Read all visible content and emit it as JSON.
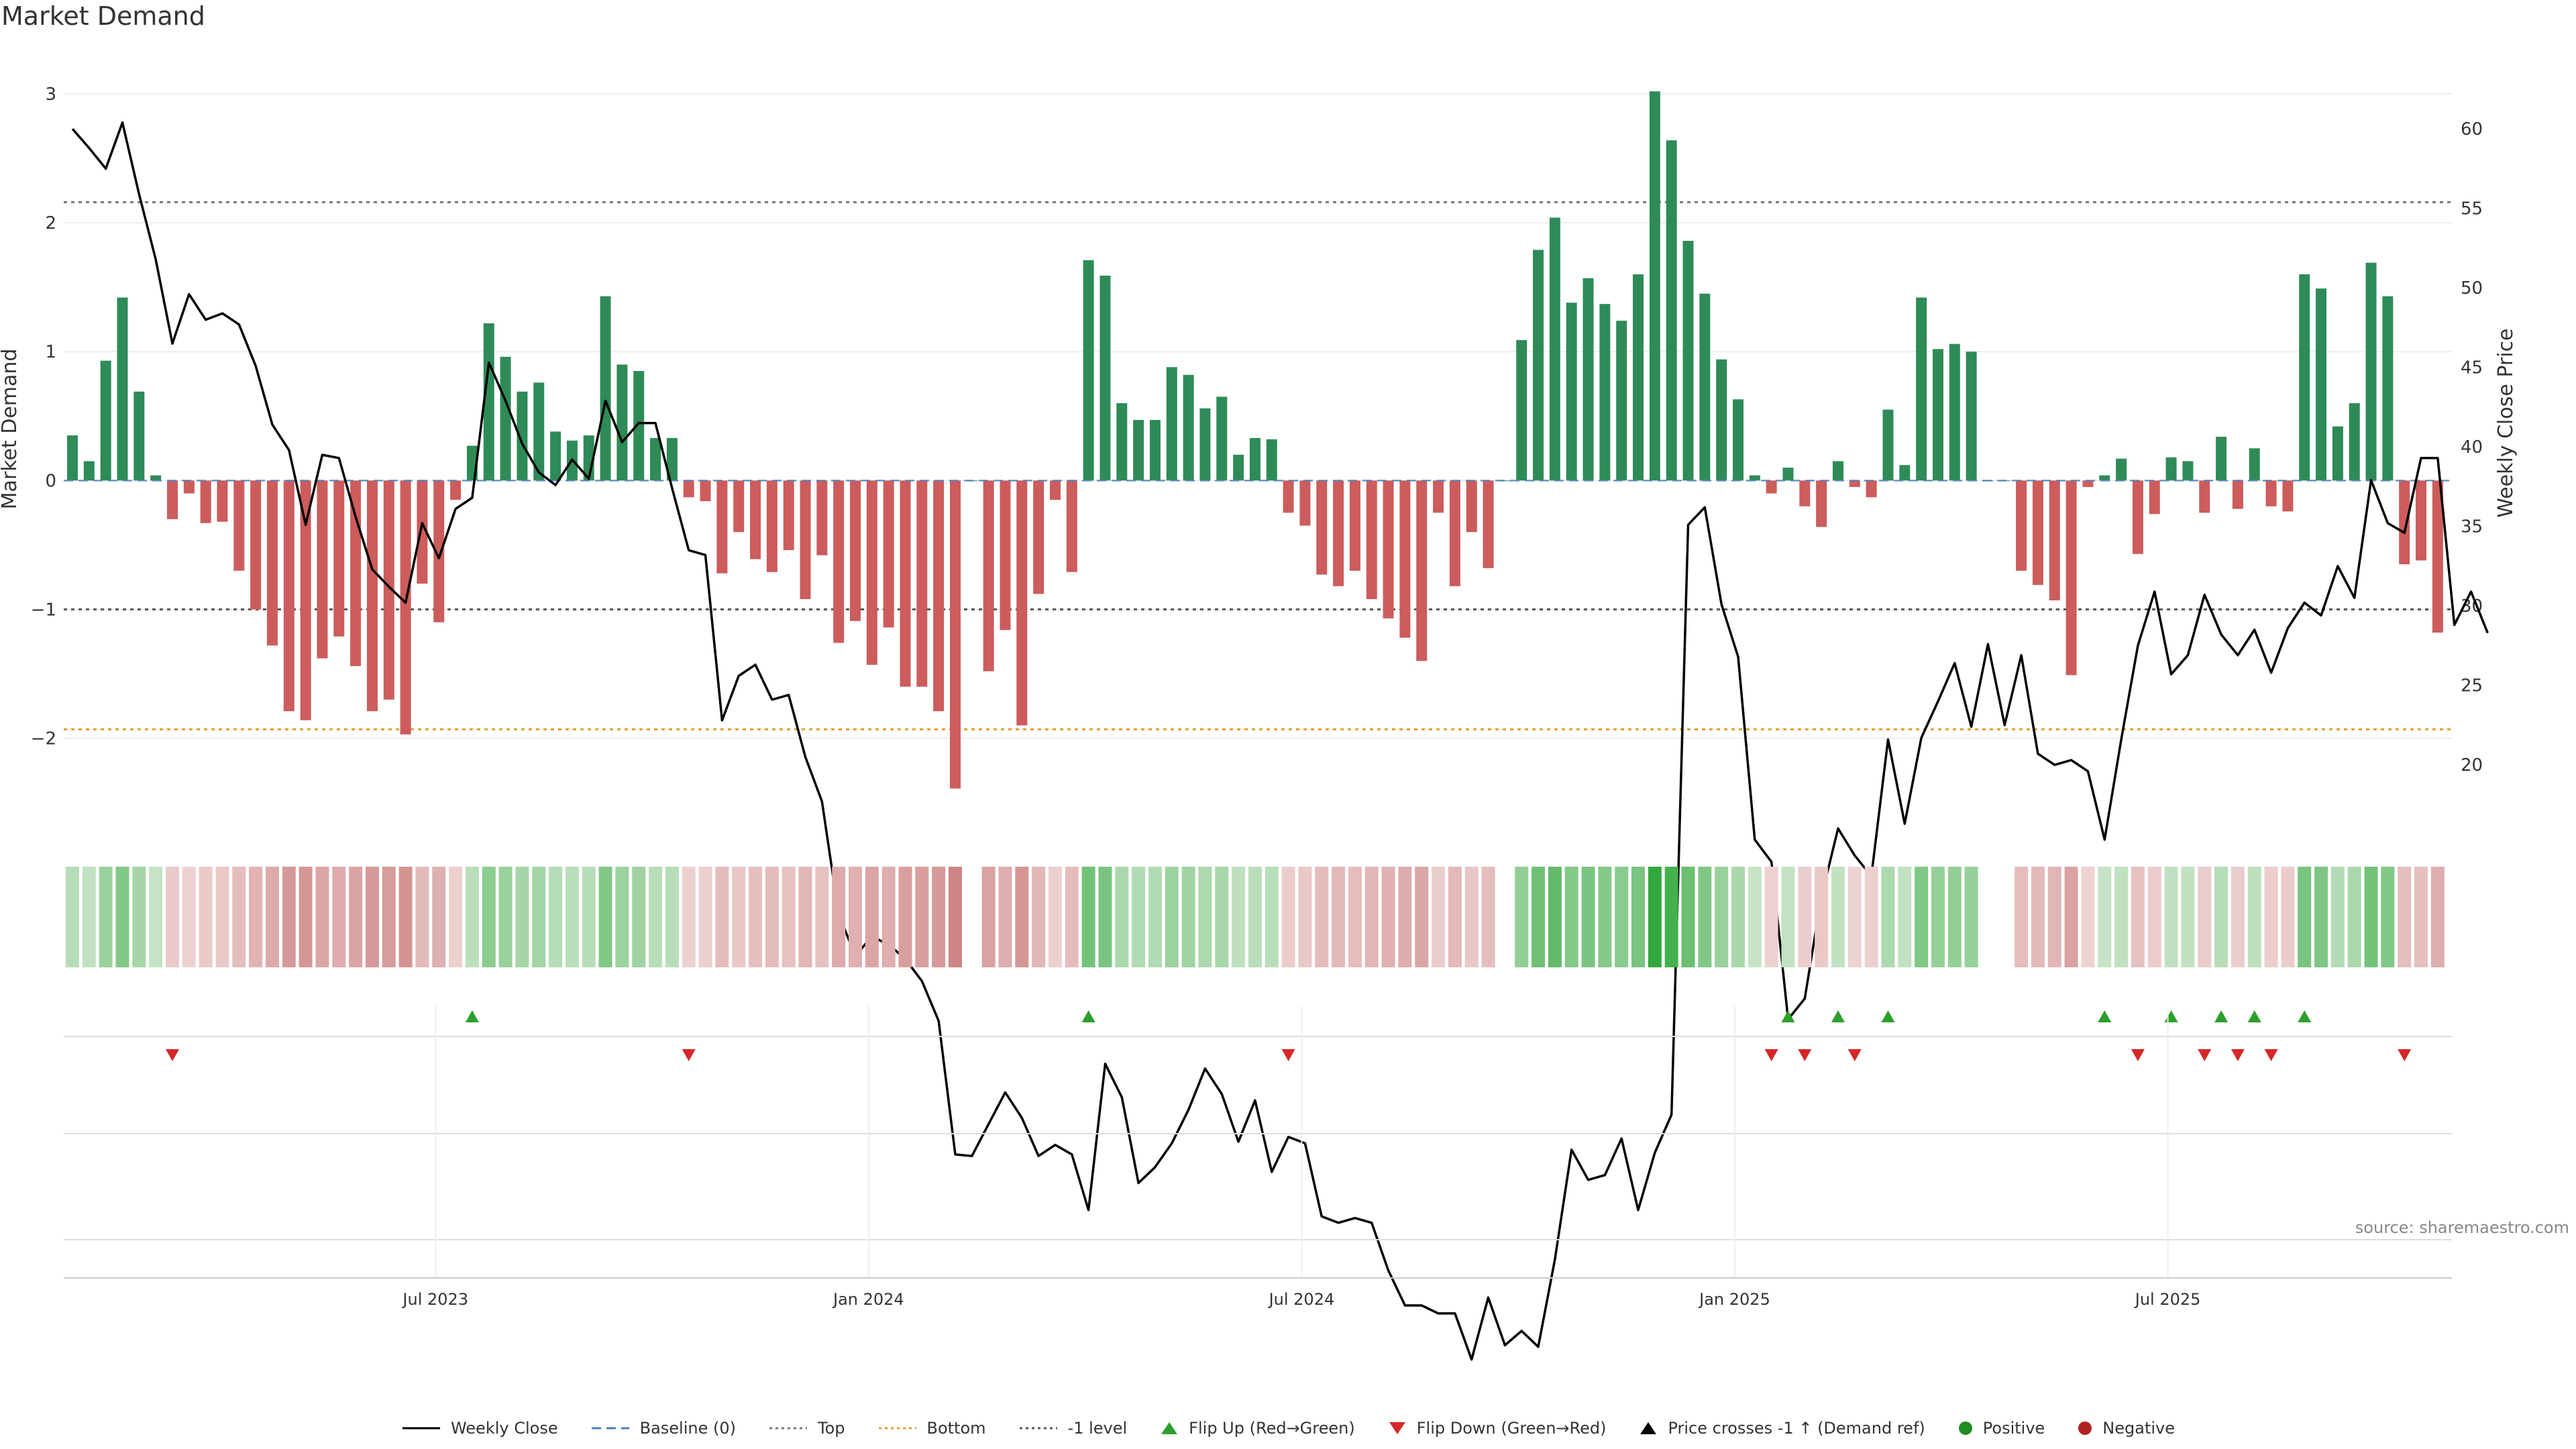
{
  "page": {
    "title": "Market Demand",
    "source": "source: sharemaestro.com"
  },
  "colors": {
    "positive": "#2e8b57",
    "negative": "#cd5c5c",
    "price_line": "#000000",
    "baseline": "#4a7ebb",
    "top": "#777777",
    "bottom": "#e69a2a",
    "flip_up": "#2ca02c",
    "flip_down": "#d62728",
    "cross": "#000000",
    "pos_dot": "#228b22",
    "neg_dot": "#b22222"
  },
  "legend": [
    {
      "key": "price",
      "label": "Weekly Close"
    },
    {
      "key": "baseline",
      "label": "Baseline (0)"
    },
    {
      "key": "top",
      "label": "Top"
    },
    {
      "key": "bottom",
      "label": "Bottom"
    },
    {
      "key": "minus1",
      "label": "-1 level"
    },
    {
      "key": "flipup",
      "label": "Flip Up (Red→Green)"
    },
    {
      "key": "flipdown",
      "label": "Flip Down (Green→Red)"
    },
    {
      "key": "cross",
      "label": "Price crosses -1 ↑ (Demand ref)"
    },
    {
      "key": "posdot",
      "label": "Positive"
    },
    {
      "key": "negdot",
      "label": "Negative"
    }
  ],
  "chart_data": {
    "type": "bar",
    "title": "Market Demand",
    "ylabel_left": "Market Demand",
    "ylabel_right": "Weekly Close Price",
    "left_ylim": [
      -2.7,
      3.0
    ],
    "left_ticks": [
      3,
      2,
      1,
      0,
      -1,
      -2
    ],
    "left_tick_labels": [
      "3",
      "2",
      "1",
      "0",
      "−1",
      "−2"
    ],
    "right_ylim": [
      16.0,
      62.2
    ],
    "right_ticks": [
      60,
      55,
      50,
      45,
      40,
      35,
      30,
      25,
      20
    ],
    "reference_lines": {
      "baseline": 0,
      "top": 2.16,
      "bottom": -1.93,
      "minus_one": -1
    },
    "x_tick_labels": [
      "Jul 2023",
      "Jan 2024",
      "Jul 2024",
      "Jan 2025",
      "Jul 2025"
    ],
    "x_tick_index": [
      22,
      48,
      74,
      100,
      126
    ],
    "demand": [
      0.35,
      0.15,
      0.93,
      1.42,
      0.69,
      0.04,
      -0.3,
      -0.1,
      -0.33,
      -0.32,
      -0.7,
      -1.0,
      -1.28,
      -1.79,
      -1.86,
      -1.38,
      -1.21,
      -1.44,
      -1.79,
      -1.7,
      -1.97,
      -0.8,
      -1.1,
      -0.15,
      0.27,
      1.22,
      0.96,
      0.69,
      0.76,
      0.38,
      0.31,
      0.35,
      1.43,
      0.9,
      0.85,
      0.33,
      0.33,
      -0.13,
      -0.16,
      -0.72,
      -0.4,
      -0.61,
      -0.71,
      -0.54,
      -0.92,
      -0.58,
      -1.26,
      -1.09,
      -1.43,
      -1.14,
      -1.6,
      -1.6,
      -1.79,
      -2.39,
      0.0,
      -1.48,
      -1.16,
      -1.9,
      -0.88,
      -0.15,
      -0.71,
      1.71,
      1.59,
      0.6,
      0.47,
      0.47,
      0.88,
      0.82,
      0.56,
      0.65,
      0.2,
      0.33,
      0.32,
      -0.25,
      -0.35,
      -0.73,
      -0.82,
      -0.7,
      -0.92,
      -1.07,
      -1.22,
      -1.4,
      -0.25,
      -0.82,
      -0.4,
      -0.68,
      0.0,
      1.09,
      1.79,
      2.04,
      1.38,
      1.57,
      1.37,
      1.24,
      1.6,
      3.02,
      2.64,
      1.86,
      1.45,
      0.94,
      0.63,
      0.04,
      -0.1,
      0.1,
      -0.2,
      -0.36,
      0.15,
      -0.05,
      -0.13,
      0.55,
      0.12,
      1.42,
      1.02,
      1.06,
      1.0,
      0.0,
      0.0,
      -0.7,
      -0.81,
      -0.93,
      -1.51,
      -0.05,
      0.04,
      0.17,
      -0.57,
      -0.26,
      0.18,
      0.15,
      -0.25,
      0.34,
      -0.22,
      0.25,
      -0.2,
      -0.24,
      1.6,
      1.49,
      0.42,
      0.6,
      1.69,
      1.43,
      -0.65,
      -0.62,
      -1.18
    ],
    "weekly_close": [
      60.0,
      58.8,
      57.5,
      60.4,
      55.9,
      51.8,
      46.5,
      49.6,
      48.0,
      48.4,
      47.7,
      45.1,
      41.4,
      39.8,
      35.1,
      39.5,
      39.3,
      35.6,
      32.3,
      31.2,
      30.2,
      35.2,
      33.0,
      36.1,
      36.8,
      45.3,
      42.9,
      40.2,
      38.4,
      37.6,
      39.2,
      38.0,
      42.9,
      40.3,
      41.5,
      41.5,
      37.4,
      33.5,
      33.2,
      22.8,
      25.6,
      26.3,
      24.1,
      24.4,
      20.5,
      17.7,
      10.6,
      8.0,
      9.2,
      8.7,
      7.8,
      6.4,
      3.9,
      -4.5,
      -4.6,
      -2.6,
      -0.6,
      -2.2,
      -4.6,
      -3.9,
      -4.5,
      -8.0,
      1.2,
      -0.9,
      -6.3,
      -5.3,
      -3.8,
      -1.7,
      0.9,
      -0.7,
      -3.7,
      -1.1,
      -5.6,
      -3.4,
      -3.8,
      -8.4,
      -8.8,
      -8.5,
      -8.8,
      -11.8,
      -14.0,
      -14.0,
      -14.5,
      -14.5,
      -17.4,
      -13.5,
      -16.5,
      -15.6,
      -16.6,
      -11.1,
      -4.2,
      -6.1,
      -5.8,
      -3.5,
      -8.0,
      -4.4,
      -2.0,
      35.1,
      36.2,
      30.1,
      26.8,
      15.3,
      13.9,
      4.0,
      5.3,
      11.7,
      16.0,
      14.3,
      13.0,
      21.6,
      16.3,
      21.7,
      24.0,
      26.4,
      22.4,
      27.6,
      22.5,
      26.9,
      20.7,
      20.0,
      20.3,
      19.6,
      15.3,
      21.6,
      27.5,
      30.9,
      25.7,
      26.9,
      30.7,
      28.2,
      26.9,
      28.5,
      25.8,
      28.6,
      30.2,
      29.4,
      32.5,
      30.5,
      37.9,
      35.2,
      34.6,
      39.3,
      39.3,
      28.8,
      30.9,
      28.3
    ],
    "note_series_units": ""
  }
}
